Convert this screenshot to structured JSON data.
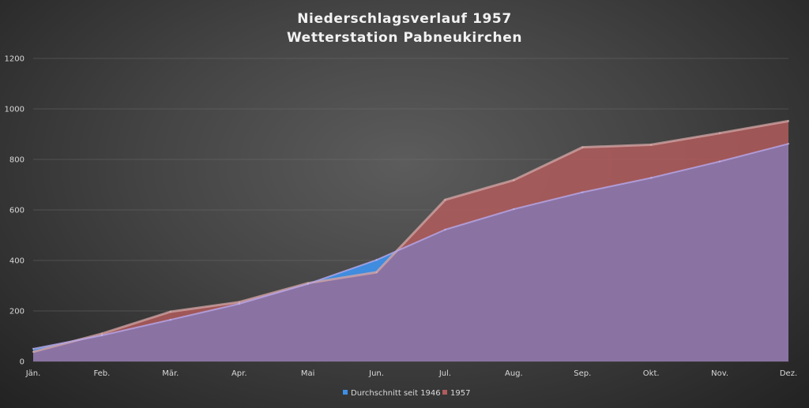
{
  "chart_data": {
    "type": "area",
    "title": "Niederschlagsverlauf 1957",
    "subtitle": "Wetterstation Pabneukirchen",
    "xlabel": "",
    "ylabel": "",
    "categories": [
      "Jän.",
      "Feb.",
      "Mär.",
      "Apr.",
      "Mai",
      "Jun.",
      "Jul.",
      "Aug.",
      "Sep.",
      "Okt.",
      "Nov.",
      "Dez."
    ],
    "ylim": [
      0,
      1200
    ],
    "yticks": [
      "0",
      "200",
      "400",
      "600",
      "800",
      "1000",
      "1200"
    ],
    "grid": true,
    "legend_position": "bottom",
    "series": [
      {
        "name": "Durchschnitt seit 1946",
        "values": [
          50,
          103,
          165,
          228,
          307,
          402,
          522,
          603,
          670,
          727,
          792,
          862
        ],
        "color": "#3f8fe6"
      },
      {
        "name": "1957",
        "values": [
          38,
          110,
          197,
          235,
          310,
          353,
          640,
          718,
          848,
          858,
          904,
          952
        ],
        "color": "#b15c5c"
      }
    ],
    "overlap_color": "#8a73a3"
  }
}
